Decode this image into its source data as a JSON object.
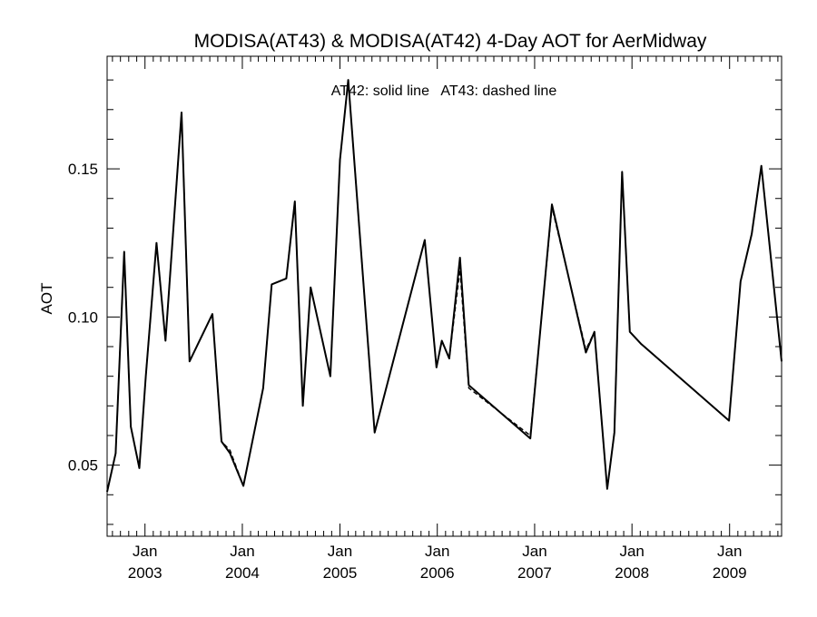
{
  "chart_data": {
    "type": "line",
    "title": "MODISA(AT43) & MODISA(AT42) 4-Day AOT for AerMidway",
    "annotation": "AT42: solid line   AT43: dashed line",
    "xlabel": "",
    "ylabel": "AOT",
    "xlim": [
      "2002-08-12",
      "2009-07-15"
    ],
    "ylim": [
      0.026,
      0.188
    ],
    "y_ticks": [
      0.05,
      0.1,
      0.15
    ],
    "y_tick_labels": [
      "0.05",
      "0.10",
      "0.15"
    ],
    "x_ticks": [
      {
        "date": "2003-01-01",
        "month": "Jan",
        "year": "2003"
      },
      {
        "date": "2004-01-01",
        "month": "Jan",
        "year": "2004"
      },
      {
        "date": "2005-01-01",
        "month": "Jan",
        "year": "2005"
      },
      {
        "date": "2006-01-01",
        "month": "Jan",
        "year": "2006"
      },
      {
        "date": "2007-01-01",
        "month": "Jan",
        "year": "2007"
      },
      {
        "date": "2008-01-01",
        "month": "Jan",
        "year": "2008"
      },
      {
        "date": "2009-01-01",
        "month": "Jan",
        "year": "2009"
      }
    ],
    "grid": false,
    "series": [
      {
        "name": "AT42",
        "style": "solid",
        "color": "#000000",
        "x": [
          "2002-08-12",
          "2002-09-13",
          "2002-10-15",
          "2002-11-09",
          "2002-12-11",
          "2003-01-04",
          "2003-02-13",
          "2003-03-19",
          "2003-05-18",
          "2003-06-17",
          "2003-09-11",
          "2003-10-15",
          "2003-11-16",
          "2004-01-05",
          "2004-03-19",
          "2004-04-20",
          "2004-06-14",
          "2004-07-16",
          "2004-08-15",
          "2004-09-13",
          "2004-11-26",
          "2005-01-01",
          "2005-02-01",
          "2005-05-11",
          "2005-11-15",
          "2005-12-29",
          "2006-01-18",
          "2006-02-15",
          "2006-03-27",
          "2006-04-29",
          "2006-12-16",
          "2007-03-07",
          "2007-07-12",
          "2007-08-13",
          "2007-09-30",
          "2007-10-27",
          "2007-11-25",
          "2007-12-24",
          "2008-02-03",
          "2008-12-30",
          "2009-02-11",
          "2009-03-25",
          "2009-04-30",
          "2009-07-15"
        ],
        "y": [
          0.041,
          0.054,
          0.122,
          0.063,
          0.049,
          0.08,
          0.125,
          0.092,
          0.169,
          0.085,
          0.101,
          0.058,
          0.054,
          0.043,
          0.076,
          0.111,
          0.113,
          0.139,
          0.07,
          0.11,
          0.08,
          0.153,
          0.18,
          0.061,
          0.126,
          0.083,
          0.092,
          0.086,
          0.12,
          0.077,
          0.059,
          0.138,
          0.088,
          0.095,
          0.042,
          0.061,
          0.149,
          0.095,
          0.091,
          0.065,
          0.112,
          0.128,
          0.151,
          0.085
        ]
      },
      {
        "name": "AT43",
        "style": "dashed",
        "color": "#000000",
        "x": [
          "2002-08-12",
          "2002-09-13",
          "2002-10-15",
          "2002-11-09",
          "2002-12-11",
          "2003-01-04",
          "2003-02-13",
          "2003-03-19",
          "2003-05-18",
          "2003-06-17",
          "2003-09-11",
          "2003-10-15",
          "2003-11-16",
          "2004-01-05",
          "2004-03-19",
          "2004-04-20",
          "2004-06-14",
          "2004-07-16",
          "2004-08-15",
          "2004-09-13",
          "2004-11-26",
          "2005-01-01",
          "2005-02-01",
          "2005-05-11",
          "2005-11-15",
          "2005-12-29",
          "2006-01-18",
          "2006-02-15",
          "2006-03-27",
          "2006-04-29",
          "2006-12-16",
          "2007-03-07",
          "2007-07-12",
          "2007-08-13",
          "2007-09-30",
          "2007-10-27",
          "2007-11-25",
          "2007-12-24",
          "2008-02-03",
          "2008-12-30",
          "2009-02-11",
          "2009-03-25",
          "2009-04-30",
          "2009-07-15"
        ],
        "y": [
          0.041,
          0.054,
          0.122,
          0.063,
          0.049,
          0.08,
          0.125,
          0.092,
          0.169,
          0.085,
          0.101,
          0.058,
          0.055,
          0.043,
          0.076,
          0.111,
          0.113,
          0.139,
          0.07,
          0.11,
          0.08,
          0.153,
          0.18,
          0.061,
          0.126,
          0.083,
          0.092,
          0.086,
          0.116,
          0.076,
          0.06,
          0.137,
          0.089,
          0.095,
          0.042,
          0.061,
          0.149,
          0.095,
          0.091,
          0.065,
          0.112,
          0.128,
          0.151,
          0.085
        ]
      }
    ]
  }
}
